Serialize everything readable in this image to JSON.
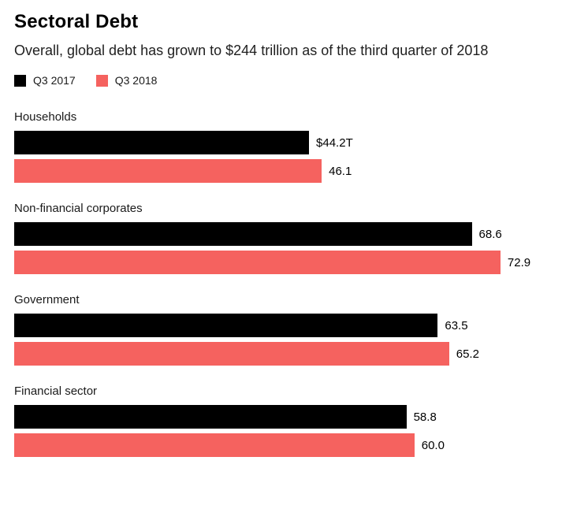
{
  "chart_data": {
    "type": "bar",
    "orientation": "horizontal",
    "title": "Sectoral Debt",
    "subtitle": "Overall, global debt has grown to $244 trillion as of the third quarter of 2018",
    "unit": "trillion USD",
    "categories": [
      "Households",
      "Non-financial corporates",
      "Government",
      "Financial sector"
    ],
    "series": [
      {
        "name": "Q3 2017",
        "color": "#000000",
        "values": [
          44.2,
          68.6,
          63.5,
          58.8
        ],
        "labels": [
          "$44.2T",
          "68.6",
          "63.5",
          "58.8"
        ]
      },
      {
        "name": "Q3 2018",
        "color": "#f5625f",
        "values": [
          46.1,
          72.9,
          65.2,
          60.0
        ],
        "labels": [
          "46.1",
          "72.9",
          "65.2",
          "60.0"
        ]
      }
    ],
    "x_max": 80,
    "grid": false,
    "legend_position": "top-left"
  }
}
